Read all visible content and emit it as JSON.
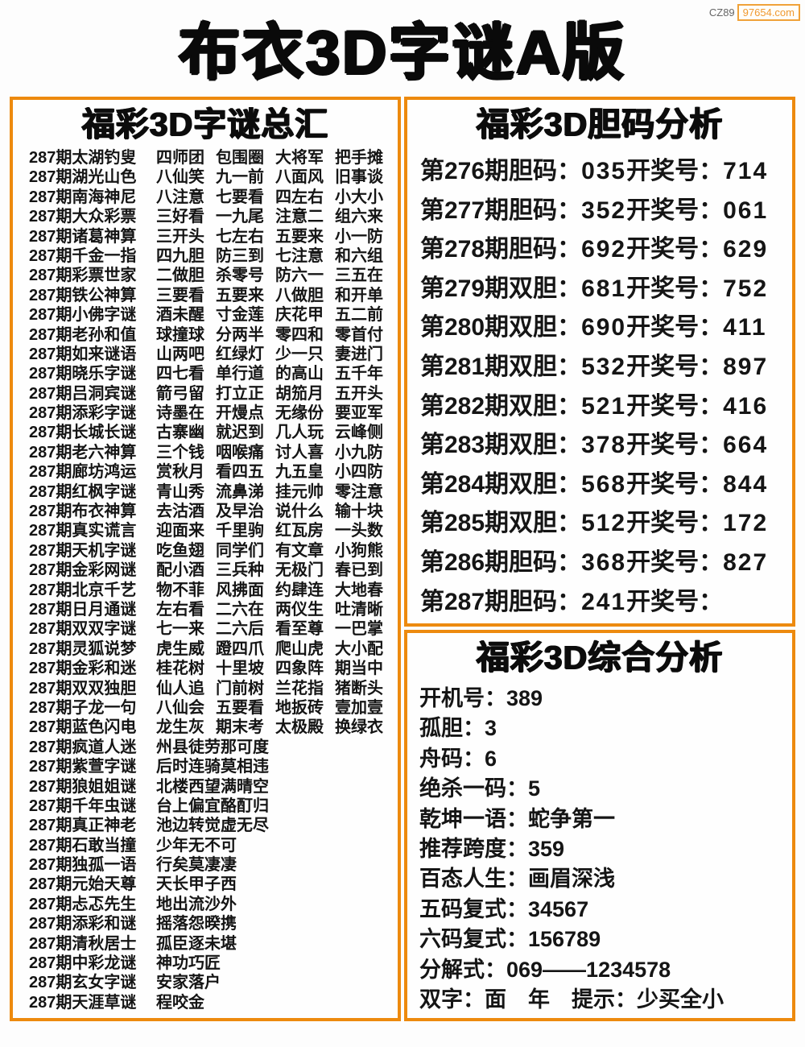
{
  "watermark": {
    "prefix": "CZ89",
    "site": "97654.com"
  },
  "title": "布衣3D字谜A版",
  "colors": {
    "accent_orange": "#ed8a0e",
    "watermark_orange": "#f09a32",
    "text_black": "#151515"
  },
  "left_panel": {
    "header": "福彩3D字谜总汇",
    "rows": [
      {
        "source": "287期太湖钓叟",
        "words": [
          "四师团",
          "包围圈",
          "大将军",
          "把手摊"
        ]
      },
      {
        "source": "287期湖光山色",
        "words": [
          "八仙笑",
          "九一前",
          "八面风",
          "旧事谈"
        ]
      },
      {
        "source": "287期南海神尼",
        "words": [
          "八注意",
          "七要看",
          "四左右",
          "小大小"
        ]
      },
      {
        "source": "287期大众彩票",
        "words": [
          "三好看",
          "一九尾",
          "注意二",
          "组六来"
        ]
      },
      {
        "source": "287期诸葛神算",
        "words": [
          "三开头",
          "七左右",
          "五要来",
          "小一防"
        ]
      },
      {
        "source": "287期千金一指",
        "words": [
          "四九胆",
          "防三到",
          "七注意",
          "和六组"
        ]
      },
      {
        "source": "287期彩票世家",
        "words": [
          "二做胆",
          "杀零号",
          "防六一",
          "三五在"
        ]
      },
      {
        "source": "287期铁公神算",
        "words": [
          "三要看",
          "五要来",
          "八做胆",
          "和开单"
        ]
      },
      {
        "source": "287期小佛字谜",
        "words": [
          "酒未醒",
          "寸金莲",
          "庆花甲",
          "五二前"
        ]
      },
      {
        "source": "287期老孙和值",
        "words": [
          "球撞球",
          "分两半",
          "零四和",
          "零首付"
        ]
      },
      {
        "source": "287期如来谜语",
        "words": [
          "山两吧",
          "红绿灯",
          "少一只",
          "妻进门"
        ]
      },
      {
        "source": "287期晓乐字谜",
        "words": [
          "四七看",
          "单行道",
          "的高山",
          "五千年"
        ]
      },
      {
        "source": "287期吕洞宾谜",
        "words": [
          "箭弓留",
          "打立正",
          "胡笳月",
          "五开头"
        ]
      },
      {
        "source": "287期添彩字谜",
        "words": [
          "诗墨在",
          "开熳点",
          "无缘份",
          "要亚军"
        ]
      },
      {
        "source": "287期长城长谜",
        "words": [
          "古寨幽",
          "就迟到",
          "几人玩",
          "云峰侧"
        ]
      },
      {
        "source": "287期老六神算",
        "words": [
          "三个钱",
          "咽喉痛",
          "讨人喜",
          "小九防"
        ]
      },
      {
        "source": "287期廊坊鸿运",
        "words": [
          "赏秋月",
          "看四五",
          "九五皇",
          "小四防"
        ]
      },
      {
        "source": "287期红枫字谜",
        "words": [
          "青山秀",
          "流鼻涕",
          "挂元帅",
          "零注意"
        ]
      },
      {
        "source": "287期布衣神算",
        "words": [
          "去沽酒",
          "及早治",
          "说什么",
          "输十块"
        ]
      },
      {
        "source": "287期真实谎言",
        "words": [
          "迎面来",
          "千里驹",
          "红瓦房",
          "一头数"
        ]
      },
      {
        "source": "287期天机字谜",
        "words": [
          "吃鱼翅",
          "同学们",
          "有文章",
          "小狗熊"
        ]
      },
      {
        "source": "287期金彩网谜",
        "words": [
          "配小酒",
          "三兵种",
          "无极门",
          "春已到"
        ]
      },
      {
        "source": "287期北京千艺",
        "words": [
          "物不菲",
          "风拂面",
          "约肆连",
          "大地春"
        ]
      },
      {
        "source": "287期日月通谜",
        "words": [
          "左右看",
          "二六在",
          "两仪生",
          "吐清晰"
        ]
      },
      {
        "source": "287期双双字谜",
        "words": [
          "七一来",
          "二六后",
          "看至尊",
          "一巴掌"
        ]
      },
      {
        "source": "287期灵狐说梦",
        "words": [
          "虎生威",
          "蹬四爪",
          "爬山虎",
          "大小配"
        ]
      },
      {
        "source": "287期金彩和迷",
        "words": [
          "桂花树",
          "十里坡",
          "四象阵",
          "期当中"
        ]
      },
      {
        "source": "287期双双独胆",
        "words": [
          "仙人追",
          "门前树",
          "兰花指",
          "猪断头"
        ]
      },
      {
        "source": "287期子龙一句",
        "words": [
          "八仙会",
          "五要看",
          "地扳砖",
          "壹加壹"
        ]
      },
      {
        "source": "287期蓝色闪电",
        "words": [
          "龙生灰",
          "期末考",
          "太极殿",
          "换绿衣"
        ]
      },
      {
        "source": "287期疯道人迷",
        "words": [
          "州县徒劳那可度"
        ]
      },
      {
        "source": "287期紫萱字谜",
        "words": [
          "后时连骑莫相违"
        ]
      },
      {
        "source": "287期狼姐姐谜",
        "words": [
          "北楼西望满晴空"
        ]
      },
      {
        "source": "287期千年虫谜",
        "words": [
          "台上偏宜酪酊归"
        ]
      },
      {
        "source": "287期真正神老",
        "words": [
          "池边转觉虚无尽"
        ]
      },
      {
        "source": "287期石敢当撞",
        "words": [
          "少年无不可"
        ]
      },
      {
        "source": "287期独孤一语",
        "words": [
          "行矣莫凄凄"
        ]
      },
      {
        "source": "287期元始天尊",
        "words": [
          "天长甲子西"
        ]
      },
      {
        "source": "287期忐忑先生",
        "words": [
          "地出流沙外"
        ]
      },
      {
        "source": "287期添彩和谜",
        "words": [
          "摇落怨暌携"
        ]
      },
      {
        "source": "287期清秋居士",
        "words": [
          "孤臣逐未堪"
        ]
      },
      {
        "source": "287期中彩龙谜",
        "words": [
          "神功巧匠"
        ]
      },
      {
        "source": "287期玄女字谜",
        "words": [
          "安家落户"
        ]
      },
      {
        "source": "287期天涯草谜",
        "words": [
          "程咬金"
        ]
      }
    ]
  },
  "danma_panel": {
    "header": "福彩3D胆码分析",
    "rows": [
      {
        "label": "第276期胆码：",
        "code": "035",
        "draw_label": "开奖号：",
        "draw": "714"
      },
      {
        "label": "第277期胆码：",
        "code": "352",
        "draw_label": "开奖号：",
        "draw": "061"
      },
      {
        "label": "第278期胆码：",
        "code": "692",
        "draw_label": "开奖号：",
        "draw": "629"
      },
      {
        "label": "第279期双胆：",
        "code": "681",
        "draw_label": "开奖号：",
        "draw": "752"
      },
      {
        "label": "第280期双胆：",
        "code": "690",
        "draw_label": "开奖号：",
        "draw": "411"
      },
      {
        "label": "第281期双胆：",
        "code": "532",
        "draw_label": "开奖号：",
        "draw": "897"
      },
      {
        "label": "第282期双胆：",
        "code": "521",
        "draw_label": "开奖号：",
        "draw": "416"
      },
      {
        "label": "第283期双胆：",
        "code": "378",
        "draw_label": "开奖号：",
        "draw": "664"
      },
      {
        "label": "第284期双胆：",
        "code": "568",
        "draw_label": "开奖号：",
        "draw": "844"
      },
      {
        "label": "第285期双胆：",
        "code": "512",
        "draw_label": "开奖号：",
        "draw": "172"
      },
      {
        "label": "第286期胆码：",
        "code": "368",
        "draw_label": "开奖号：",
        "draw": "827"
      },
      {
        "label": "第287期胆码：",
        "code": "241",
        "draw_label": "开奖号：",
        "draw": ""
      }
    ]
  },
  "analysis_panel": {
    "header": "福彩3D综合分析",
    "rows": [
      {
        "label": "开机号：",
        "value": "389"
      },
      {
        "label": "孤胆：",
        "value": "3"
      },
      {
        "label": "舟码：",
        "value": "6"
      },
      {
        "label": "绝杀一码：",
        "value": "5"
      },
      {
        "label": "乾坤一语：",
        "value": "蛇争第一"
      },
      {
        "label": "推荐跨度：",
        "value": "359"
      },
      {
        "label": "百态人生：",
        "value": "画眉深浅"
      },
      {
        "label": "五码复式：",
        "value": "34567"
      },
      {
        "label": "六码复式：",
        "value": "156789"
      },
      {
        "label": "分解式：",
        "value": "069——1234578"
      },
      {
        "label": "双字：",
        "value": "面　年　提示：少买全小"
      }
    ]
  }
}
